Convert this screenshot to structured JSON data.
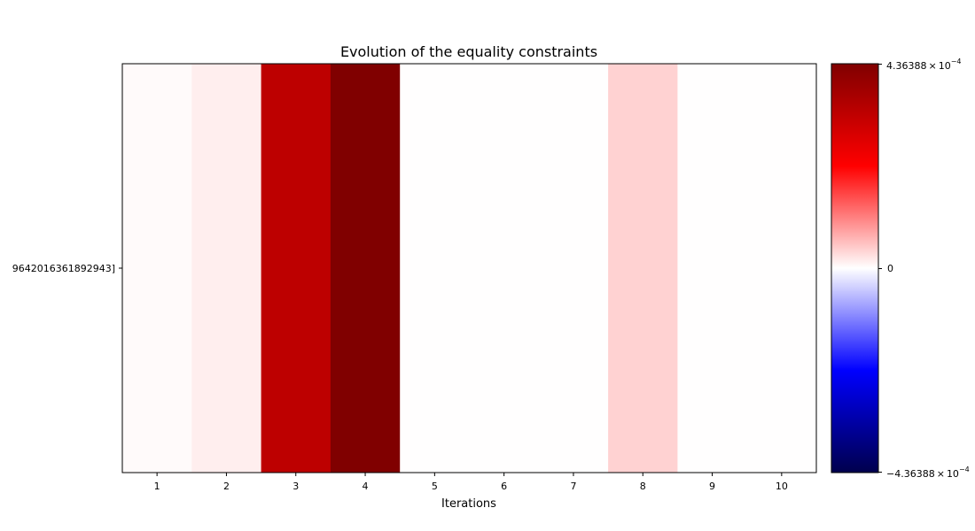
{
  "chart_data": {
    "type": "heatmap",
    "title": "Evolution of the equality constraints",
    "xlabel": "Iterations",
    "ylabel": "",
    "x": [
      1,
      2,
      3,
      4,
      5,
      6,
      7,
      8,
      9,
      10
    ],
    "x_tick_labels": [
      "1",
      "2",
      "3",
      "4",
      "5",
      "6",
      "7",
      "8",
      "9",
      "10"
    ],
    "y_tick_labels": [
      "9642016361892943]"
    ],
    "values": [
      [
        4.4e-06,
        1.44e-05,
        0.0003309,
        0.0004364,
        1e-06,
        1e-06,
        1e-06,
        3.85e-05,
        1e-06,
        1e-06
      ]
    ],
    "colormap": "seismic",
    "vmin": -0.000436388,
    "vmax": 0.000436388,
    "colorbar": {
      "min_label_mantissa": "−4.36388",
      "max_label_mantissa": "4.36388",
      "mid_label": "0",
      "times": "×",
      "base": "10",
      "exponent": "−4"
    },
    "grid": false,
    "legend": "colorbar-right"
  }
}
